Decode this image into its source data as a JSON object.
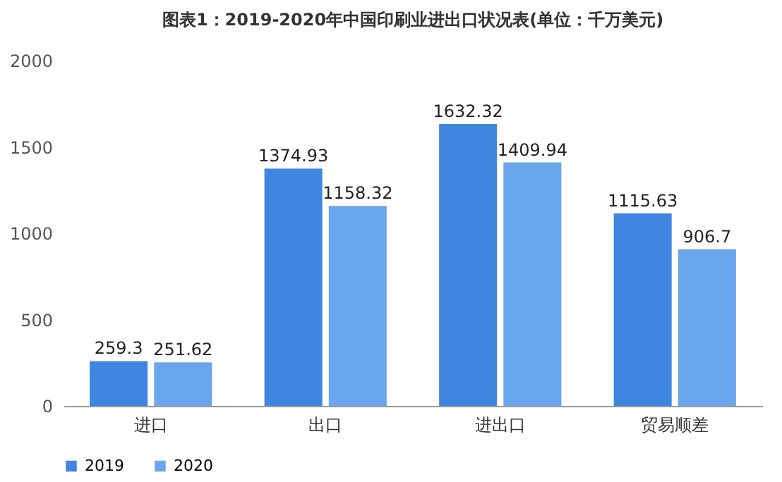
{
  "chart_data": {
    "type": "bar",
    "title": "图表1：2019-2020年中国印刷业进出口状况表(单位：千万美元)",
    "categories": [
      "进口",
      "出口",
      "进出口",
      "贸易顺差"
    ],
    "series": [
      {
        "name": "2019",
        "color": "#3f86e0",
        "values": [
          259.3,
          1374.93,
          1632.32,
          1115.63
        ]
      },
      {
        "name": "2020",
        "color": "#6aa6ec",
        "values": [
          251.62,
          1158.32,
          1409.94,
          906.7
        ]
      }
    ],
    "ylim": [
      0,
      2000
    ],
    "yticks": [
      0,
      500,
      1000,
      1500,
      2000
    ],
    "grid": false,
    "legend": "bottom",
    "data_labels": true
  }
}
